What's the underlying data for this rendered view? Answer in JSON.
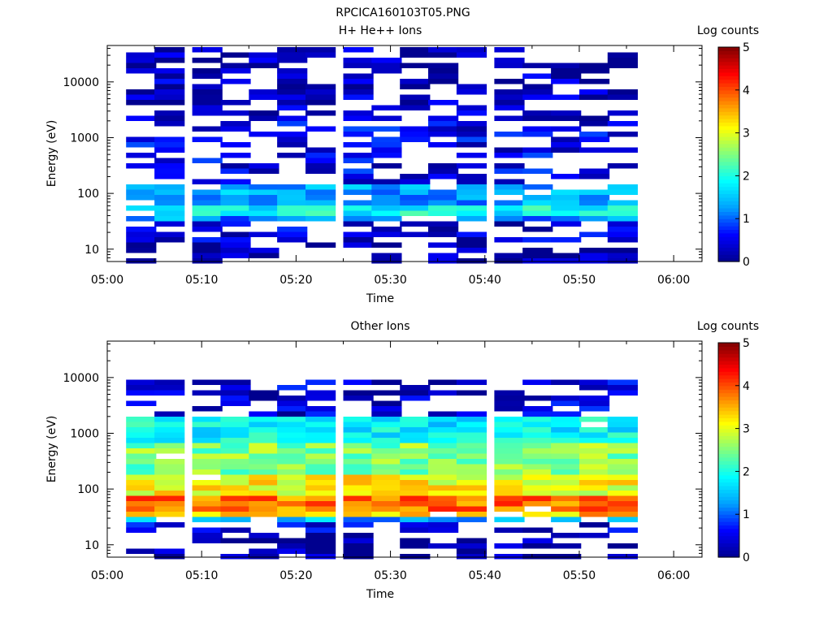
{
  "figure_title": "RPCICA160103T05.PNG",
  "colors": {
    "background": "#ffffff",
    "axis": "#000000",
    "colormap": [
      "#00008f",
      "#0000ff",
      "#00a0ff",
      "#00ffff",
      "#80ff80",
      "#ffff00",
      "#ff8000",
      "#ff0000",
      "#800000"
    ]
  },
  "chart_data": [
    {
      "type": "heatmap",
      "title": "H+ He++ Ions",
      "xlabel": "Time",
      "ylabel": "Energy (eV)",
      "y_scale": "log",
      "ylim": [
        6,
        45000
      ],
      "xlim": [
        "05:00",
        "06:03"
      ],
      "x_ticks": [
        "05:00",
        "05:10",
        "05:20",
        "05:30",
        "05:40",
        "05:50",
        "06:00"
      ],
      "y_ticks": [
        "10",
        "100",
        "1000",
        "10000"
      ],
      "colorbar": {
        "label": "Log counts",
        "range": [
          0,
          5
        ],
        "ticks": [
          "0",
          "1",
          "2",
          "3",
          "4",
          "5"
        ]
      },
      "time_bins": [
        "05:02",
        "05:05",
        "05:09",
        "05:12",
        "05:15",
        "05:18",
        "05:21",
        "05:25",
        "05:28",
        "05:31",
        "05:34",
        "05:37",
        "05:41",
        "05:44",
        "05:47",
        "05:50",
        "05:53"
      ],
      "bin_width_minutes": 3.2,
      "energy_profile": {
        "description_levels": "log counts by energy band",
        "bands": [
          {
            "energy_range_ev": [
              6,
              12
            ],
            "log_counts": 0.1
          },
          {
            "energy_range_ev": [
              12,
              30
            ],
            "log_counts": 0.4
          },
          {
            "energy_range_ev": [
              30,
              40
            ],
            "log_counts": 1.2
          },
          {
            "energy_range_ev": [
              40,
              60
            ],
            "log_counts": 1.9
          },
          {
            "energy_range_ev": [
              60,
              150
            ],
            "log_counts": 1.3
          },
          {
            "energy_range_ev": [
              150,
              2000
            ],
            "log_counts": 0.5
          },
          {
            "energy_range_ev": [
              2000,
              45000
            ],
            "log_counts": 0.25
          }
        ]
      }
    },
    {
      "type": "heatmap",
      "title": "Other Ions",
      "xlabel": "Time",
      "ylabel": "Energy (eV)",
      "y_scale": "log",
      "ylim": [
        6,
        45000
      ],
      "xlim": [
        "05:00",
        "06:03"
      ],
      "x_ticks": [
        "05:00",
        "05:10",
        "05:20",
        "05:30",
        "05:40",
        "05:50",
        "06:00"
      ],
      "y_ticks": [
        "10",
        "100",
        "1000",
        "10000"
      ],
      "colorbar": {
        "label": "Log counts",
        "range": [
          0,
          5
        ],
        "ticks": [
          "0",
          "1",
          "2",
          "3",
          "4",
          "5"
        ]
      },
      "time_bins": [
        "05:02",
        "05:05",
        "05:09",
        "05:12",
        "05:15",
        "05:18",
        "05:21",
        "05:25",
        "05:28",
        "05:31",
        "05:34",
        "05:37",
        "05:41",
        "05:44",
        "05:47",
        "05:50",
        "05:53"
      ],
      "bin_width_minutes": 3.2,
      "energy_profile": {
        "description_levels": "log counts by energy band",
        "bands": [
          {
            "energy_range_ev": [
              6,
              12
            ],
            "log_counts": 0.1
          },
          {
            "energy_range_ev": [
              12,
              25
            ],
            "log_counts": 0.4
          },
          {
            "energy_range_ev": [
              25,
              30
            ],
            "log_counts": 1.4
          },
          {
            "energy_range_ev": [
              30,
              40
            ],
            "log_counts": 3.4
          },
          {
            "energy_range_ev": [
              40,
              70
            ],
            "log_counts": 3.8
          },
          {
            "energy_range_ev": [
              70,
              200
            ],
            "log_counts": 3.1
          },
          {
            "energy_range_ev": [
              200,
              700
            ],
            "log_counts": 2.5
          },
          {
            "energy_range_ev": [
              700,
              2000
            ],
            "log_counts": 1.8
          },
          {
            "energy_range_ev": [
              2000,
              10000
            ],
            "log_counts": 0.4
          }
        ]
      }
    }
  ]
}
